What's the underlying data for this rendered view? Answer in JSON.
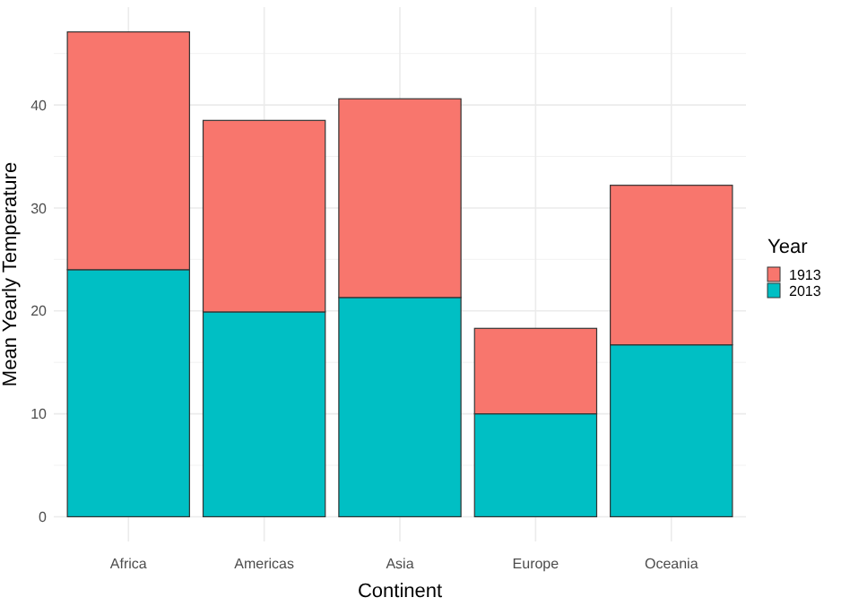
{
  "chart_data": {
    "type": "bar",
    "stacked": true,
    "xlabel": "Continent",
    "ylabel": "Mean Yearly Temperature",
    "legend_title": "Year",
    "legend": "right",
    "categories": [
      "Africa",
      "Americas",
      "Asia",
      "Europe",
      "Oceania"
    ],
    "series": [
      {
        "name": "2013",
        "color": "#00bfc4",
        "values": [
          24.0,
          19.9,
          21.3,
          10.0,
          16.7
        ]
      },
      {
        "name": "1913",
        "color": "#f8766d",
        "values": [
          23.1,
          18.6,
          19.3,
          8.3,
          15.5
        ]
      }
    ],
    "ylim": [
      -2.4,
      49.5
    ],
    "yticks": [
      0,
      10,
      20,
      30,
      40
    ],
    "grid": true
  }
}
